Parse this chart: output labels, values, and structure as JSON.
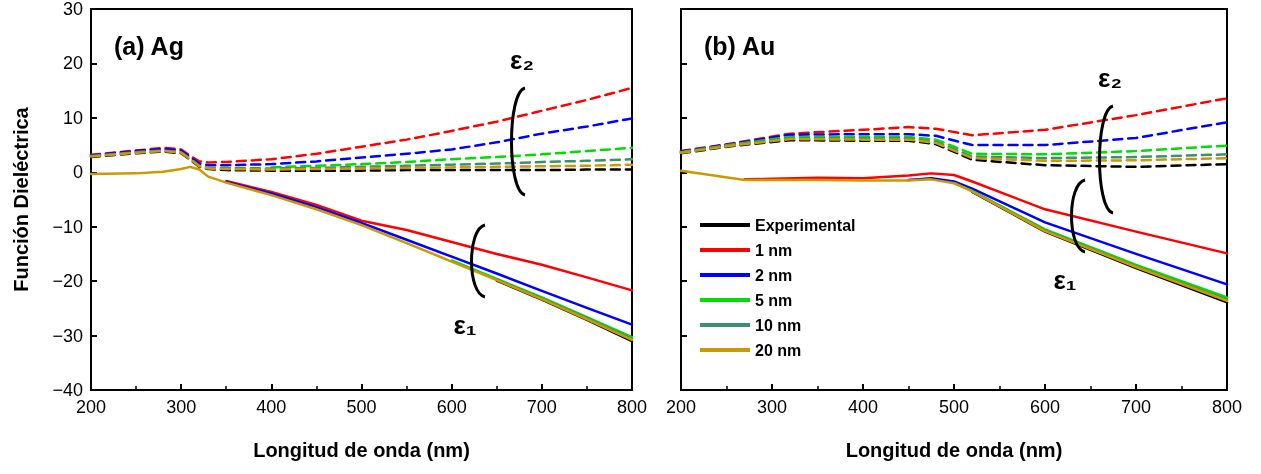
{
  "chart_data": [
    {
      "type": "line",
      "title": "(a) Ag",
      "xlabel": "Longitud de onda (nm)",
      "ylabel": "Función Dieléctrica",
      "xlim": [
        200,
        800
      ],
      "xticks": [
        200,
        300,
        400,
        500,
        600,
        700,
        800
      ],
      "ylim": [
        -40,
        30
      ],
      "yticks": [
        -40,
        -30,
        -20,
        -10,
        0,
        10,
        20,
        30
      ],
      "marker": "none",
      "grid": false,
      "legend": false,
      "annotations": [
        "ε₂",
        "ε₁"
      ],
      "series": [
        {
          "color": "#000000",
          "line_style": "solid",
          "x": [
            650,
            700,
            750,
            800
          ],
          "values": [
            -19.9,
            -23.4,
            -27.1,
            -31.0
          ]
        },
        {
          "color": "#ff0000",
          "line_style": "solid",
          "x": [
            350,
            400,
            450,
            500,
            550,
            600,
            650,
            700,
            750,
            800
          ],
          "values": [
            -1.6,
            -3.6,
            -6.0,
            -8.9,
            -10.6,
            -12.8,
            -15.0,
            -17.0,
            -19.3,
            -21.7
          ]
        },
        {
          "color": "#0000ff",
          "line_style": "solid",
          "x": [
            350,
            400,
            450,
            500,
            550,
            600,
            650,
            700,
            750,
            800
          ],
          "values": [
            -1.8,
            -3.9,
            -6.4,
            -9.3,
            -12.4,
            -15.5,
            -18.6,
            -21.8,
            -24.9,
            -28.0
          ]
        },
        {
          "color": "#00dd00",
          "line_style": "solid",
          "x": [
            600,
            650,
            700,
            750,
            800
          ],
          "values": [
            -16.2,
            -19.6,
            -23.0,
            -26.6,
            -30.3
          ]
        },
        {
          "color": "#3a9070",
          "line_style": "solid",
          "x": [
            650,
            700,
            750,
            800
          ],
          "values": [
            -19.7,
            -23.2,
            -26.8,
            -30.6
          ]
        },
        {
          "color": "#cc9900",
          "line_style": "solid",
          "x": [
            200,
            250,
            280,
            300,
            310,
            320,
            330,
            350,
            400,
            450,
            500,
            550,
            600,
            650,
            700,
            750,
            800
          ],
          "values": [
            -0.3,
            -0.2,
            0.1,
            0.6,
            1.0,
            0.5,
            -0.8,
            -1.9,
            -4.2,
            -6.8,
            -9.7,
            -13.0,
            -16.4,
            -19.8,
            -23.3,
            -27.0,
            -30.8
          ]
        },
        {
          "color": "#000000",
          "line_style": "dashed",
          "x": [
            200,
            250,
            280,
            300,
            310,
            320,
            330,
            350,
            400,
            450,
            500,
            550,
            600,
            650,
            700,
            750,
            800
          ],
          "values": [
            2.8,
            3.5,
            3.8,
            3.5,
            2.3,
            1.0,
            0.6,
            0.4,
            0.3,
            0.3,
            0.3,
            0.4,
            0.4,
            0.4,
            0.4,
            0.5,
            0.5
          ]
        },
        {
          "color": "#ff0000",
          "line_style": "dashed",
          "x": [
            200,
            250,
            280,
            300,
            310,
            320,
            330,
            350,
            400,
            450,
            500,
            550,
            600,
            650,
            700,
            750,
            800
          ],
          "values": [
            3.2,
            4.0,
            4.5,
            4.2,
            3.0,
            2.0,
            1.8,
            1.9,
            2.4,
            3.4,
            4.7,
            6.0,
            7.6,
            9.3,
            11.3,
            13.3,
            15.5
          ]
        },
        {
          "color": "#0000ff",
          "line_style": "dashed",
          "x": [
            200,
            250,
            280,
            300,
            310,
            320,
            330,
            350,
            400,
            450,
            500,
            550,
            600,
            650,
            700,
            750,
            800
          ],
          "values": [
            3.1,
            3.9,
            4.3,
            4.0,
            2.8,
            1.6,
            1.3,
            1.3,
            1.5,
            2.0,
            2.7,
            3.4,
            4.2,
            5.5,
            7.1,
            8.4,
            9.9
          ]
        },
        {
          "color": "#00dd00",
          "line_style": "dashed",
          "x": [
            400,
            450,
            500,
            550,
            600,
            650,
            700,
            750,
            800
          ],
          "values": [
            0.9,
            1.2,
            1.5,
            1.9,
            2.4,
            2.8,
            3.3,
            3.9,
            4.5
          ]
        },
        {
          "color": "#3a9070",
          "line_style": "dashed",
          "x": [
            200,
            250,
            280,
            300,
            310,
            320,
            330,
            350,
            400,
            450,
            500,
            550,
            600,
            650,
            700,
            750,
            800
          ],
          "values": [
            3.0,
            3.7,
            4.0,
            3.7,
            2.5,
            1.2,
            0.8,
            0.8,
            0.7,
            0.8,
            1.0,
            1.2,
            1.4,
            1.6,
            1.9,
            2.1,
            2.4
          ]
        },
        {
          "color": "#cc9900",
          "line_style": "dashed",
          "x": [
            200,
            250,
            280,
            300,
            310,
            320,
            330,
            350,
            400,
            450,
            500,
            550,
            600,
            650,
            700,
            750,
            800
          ],
          "values": [
            2.9,
            3.6,
            3.9,
            3.6,
            2.4,
            1.1,
            0.7,
            0.6,
            0.5,
            0.6,
            0.7,
            0.8,
            0.9,
            1.0,
            1.1,
            1.2,
            1.4
          ]
        }
      ]
    },
    {
      "type": "line",
      "title": "(b) Au",
      "xlabel": "Longitud de onda (nm)",
      "xlim": [
        200,
        800
      ],
      "xticks": [
        200,
        300,
        400,
        500,
        600,
        700,
        800
      ],
      "ylim": [
        -40,
        30
      ],
      "yticks": [
        -40,
        -30,
        -20,
        -10,
        0,
        10,
        20,
        30
      ],
      "tick_labels": "x",
      "marker": "none",
      "grid": false,
      "legend": "left",
      "annotations": [
        "ε₂",
        "ε₁"
      ],
      "series": [
        {
          "name": "Experimental",
          "color": "#000000",
          "line_style": "solid",
          "x": [
            520,
            600,
            700,
            800
          ],
          "values": [
            -3.6,
            -10.9,
            -17.6,
            -23.9
          ]
        },
        {
          "name": "1 nm",
          "color": "#ff0000",
          "line_style": "solid",
          "x": [
            270,
            350,
            400,
            450,
            475,
            500,
            520,
            600,
            700,
            800
          ],
          "values": [
            -1.3,
            -1.0,
            -1.1,
            -0.6,
            -0.2,
            -0.5,
            -1.7,
            -6.8,
            -10.9,
            -14.9
          ]
        },
        {
          "name": "2 nm",
          "color": "#0000ff",
          "line_style": "solid",
          "x": [
            450,
            475,
            500,
            520,
            600,
            700,
            800
          ],
          "values": [
            -1.4,
            -1.1,
            -1.7,
            -3.0,
            -9.2,
            -15.0,
            -20.6
          ]
        },
        {
          "name": "5 nm",
          "color": "#00dd00",
          "line_style": "solid",
          "x": [
            500,
            520,
            600,
            700,
            800
          ],
          "values": [
            -2.0,
            -3.4,
            -10.5,
            -17.0,
            -23.0
          ]
        },
        {
          "name": "10 nm",
          "color": "#3a9070",
          "line_style": "solid",
          "x": [
            520,
            600,
            700,
            800
          ],
          "values": [
            -3.5,
            -10.7,
            -17.3,
            -23.4
          ]
        },
        {
          "name": "20 nm",
          "color": "#cc9900",
          "line_style": "solid",
          "x": [
            200,
            270,
            350,
            400,
            450,
            475,
            500,
            520,
            600,
            700,
            800
          ],
          "values": [
            0.3,
            -1.4,
            -1.4,
            -1.5,
            -1.5,
            -1.3,
            -2.0,
            -3.5,
            -10.8,
            -17.4,
            -23.6
          ]
        },
        {
          "color": "#000000",
          "line_style": "dashed",
          "x": [
            200,
            260,
            320,
            400,
            450,
            480,
            520,
            600,
            700,
            800
          ],
          "values": [
            3.5,
            4.9,
            5.9,
            5.8,
            5.8,
            5.2,
            2.3,
            1.3,
            1.0,
            1.5
          ]
        },
        {
          "color": "#ff0000",
          "line_style": "dashed",
          "x": [
            200,
            260,
            320,
            400,
            450,
            480,
            520,
            600,
            700,
            800
          ],
          "values": [
            3.9,
            5.4,
            7.1,
            7.8,
            8.3,
            8.0,
            6.8,
            7.8,
            10.5,
            13.6
          ]
        },
        {
          "color": "#0000ff",
          "line_style": "dashed",
          "x": [
            200,
            260,
            320,
            400,
            450,
            480,
            520,
            600,
            700,
            800
          ],
          "values": [
            3.8,
            5.3,
            6.9,
            7.0,
            7.0,
            6.7,
            5.0,
            5.0,
            6.3,
            9.2
          ]
        },
        {
          "color": "#00dd00",
          "line_style": "dashed",
          "x": [
            200,
            260,
            320,
            400,
            450,
            480,
            520,
            600,
            700,
            800
          ],
          "values": [
            3.7,
            5.2,
            6.5,
            6.5,
            6.5,
            6.0,
            3.4,
            3.3,
            3.9,
            4.9
          ]
        },
        {
          "color": "#3a9070",
          "line_style": "dashed",
          "x": [
            200,
            260,
            320,
            400,
            450,
            480,
            520,
            600,
            700,
            800
          ],
          "values": [
            3.6,
            5.1,
            6.3,
            6.2,
            6.2,
            5.6,
            2.9,
            2.6,
            2.8,
            3.3
          ]
        },
        {
          "color": "#cc9900",
          "line_style": "dashed",
          "x": [
            200,
            260,
            320,
            400,
            450,
            480,
            520,
            600,
            700,
            800
          ],
          "values": [
            3.6,
            5.0,
            6.1,
            6.0,
            6.0,
            5.4,
            2.6,
            2.1,
            2.2,
            2.6
          ]
        }
      ]
    }
  ]
}
